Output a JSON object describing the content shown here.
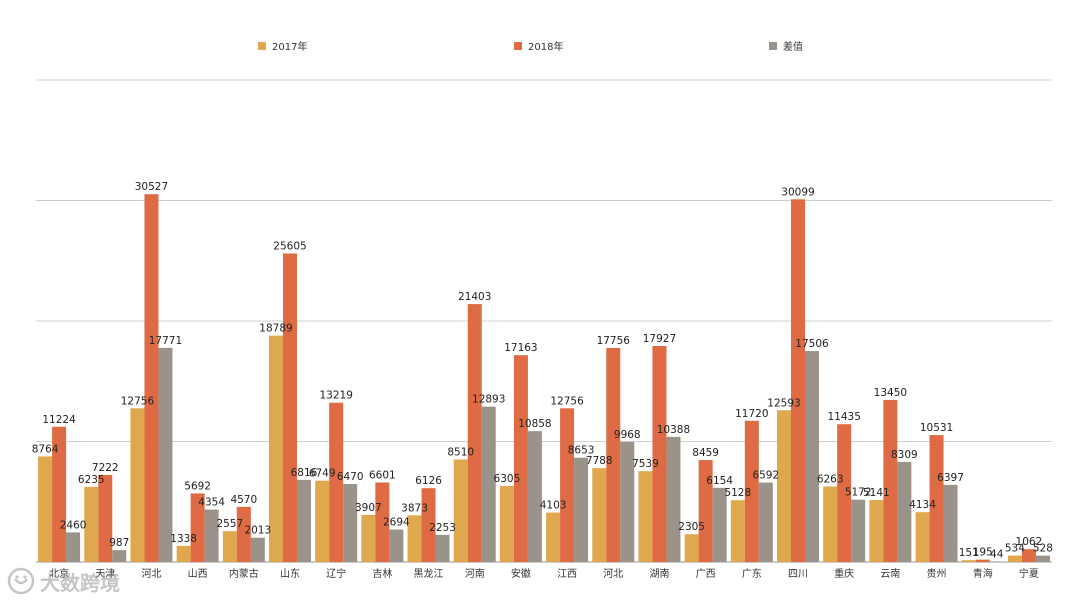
{
  "legend": {
    "items": [
      {
        "label": "2017年",
        "color": "#E0A84E"
      },
      {
        "label": "2018年",
        "color": "#DE6B44"
      },
      {
        "label": "差值",
        "color": "#9B938A"
      }
    ]
  },
  "watermark": {
    "text": "大数跨境"
  },
  "chart_data": {
    "type": "bar",
    "title": "",
    "xlabel": "",
    "ylabel": "",
    "ylim": [
      0,
      40000
    ],
    "grid": true,
    "legend_position": "top",
    "categories": [
      "北京",
      "天津",
      "河北",
      "山西",
      "内蒙古",
      "山东",
      "辽宁",
      "吉林",
      "黑龙江",
      "河南",
      "安徽",
      "江西",
      "河北",
      "湖南",
      "广西",
      "广东",
      "四川",
      "重庆",
      "云南",
      "贵州",
      "青海",
      "宁夏"
    ],
    "series": [
      {
        "name": "2017年",
        "color": "#E0A84E",
        "values": [
          8764,
          6235,
          12756,
          1338,
          2557,
          18789,
          6749,
          3907,
          3873,
          8510,
          6305,
          4103,
          7788,
          7539,
          2305,
          5128,
          12593,
          6263,
          5141,
          4134,
          151,
          534
        ]
      },
      {
        "name": "2018年",
        "color": "#DE6B44",
        "values": [
          11224,
          7222,
          30527,
          5692,
          4570,
          25605,
          13219,
          6601,
          6126,
          21403,
          17163,
          12756,
          17756,
          17927,
          8459,
          11720,
          30099,
          11435,
          13450,
          10531,
          195,
          1062
        ]
      },
      {
        "name": "差值",
        "color": "#9B938A",
        "values": [
          2460,
          987,
          17771,
          4354,
          2013,
          6816,
          6470,
          2694,
          2253,
          12893,
          10858,
          8653,
          9968,
          10388,
          6154,
          6592,
          17506,
          5172,
          8309,
          6397,
          44,
          528
        ]
      }
    ]
  }
}
